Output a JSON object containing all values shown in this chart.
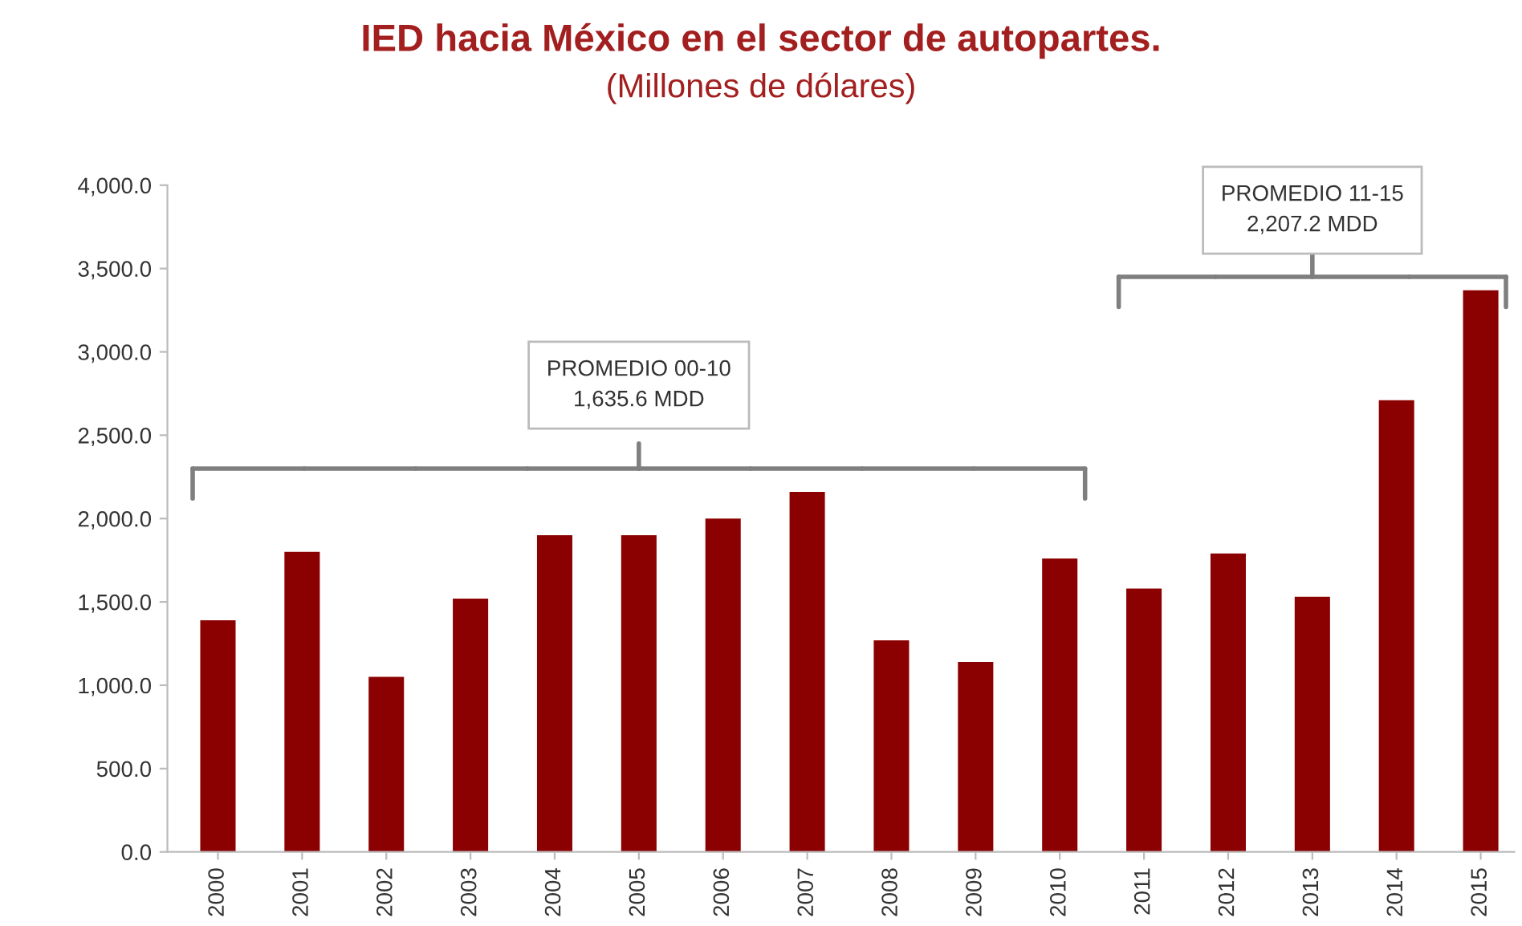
{
  "chart_data": {
    "type": "bar",
    "title": "IED hacia México en el sector de autopartes.",
    "subtitle": "(Millones de dólares)",
    "categories": [
      "2000",
      "2001",
      "2002",
      "2003",
      "2004",
      "2005",
      "2006",
      "2007",
      "2008",
      "2009",
      "2010",
      "2011",
      "2012",
      "2013",
      "2014",
      "2015"
    ],
    "values": [
      1390,
      1800,
      1050,
      1520,
      1900,
      1900,
      2000,
      2160,
      1270,
      1140,
      1760,
      1580,
      1790,
      1530,
      2710,
      3370
    ],
    "color": "#8b0000",
    "ylim": [
      0,
      4000
    ],
    "yticks": [
      {
        "value": 0,
        "label": "0.0"
      },
      {
        "value": 500,
        "label": "500.0"
      },
      {
        "value": 1000,
        "label": "1,000.0"
      },
      {
        "value": 1500,
        "label": "1,500.0"
      },
      {
        "value": 2000,
        "label": "2,000.0"
      },
      {
        "value": 2500,
        "label": "2,500.0"
      },
      {
        "value": 3000,
        "label": "3,000.0"
      },
      {
        "value": 3500,
        "label": "3,500.0"
      },
      {
        "value": 4000,
        "label": "4,000.0"
      }
    ],
    "grid": false,
    "annotations": [
      "PROMEDIO 00-10\n1,635.6 MDD",
      "PROMEDIO 11-15\n2,207.2 MDD"
    ]
  }
}
